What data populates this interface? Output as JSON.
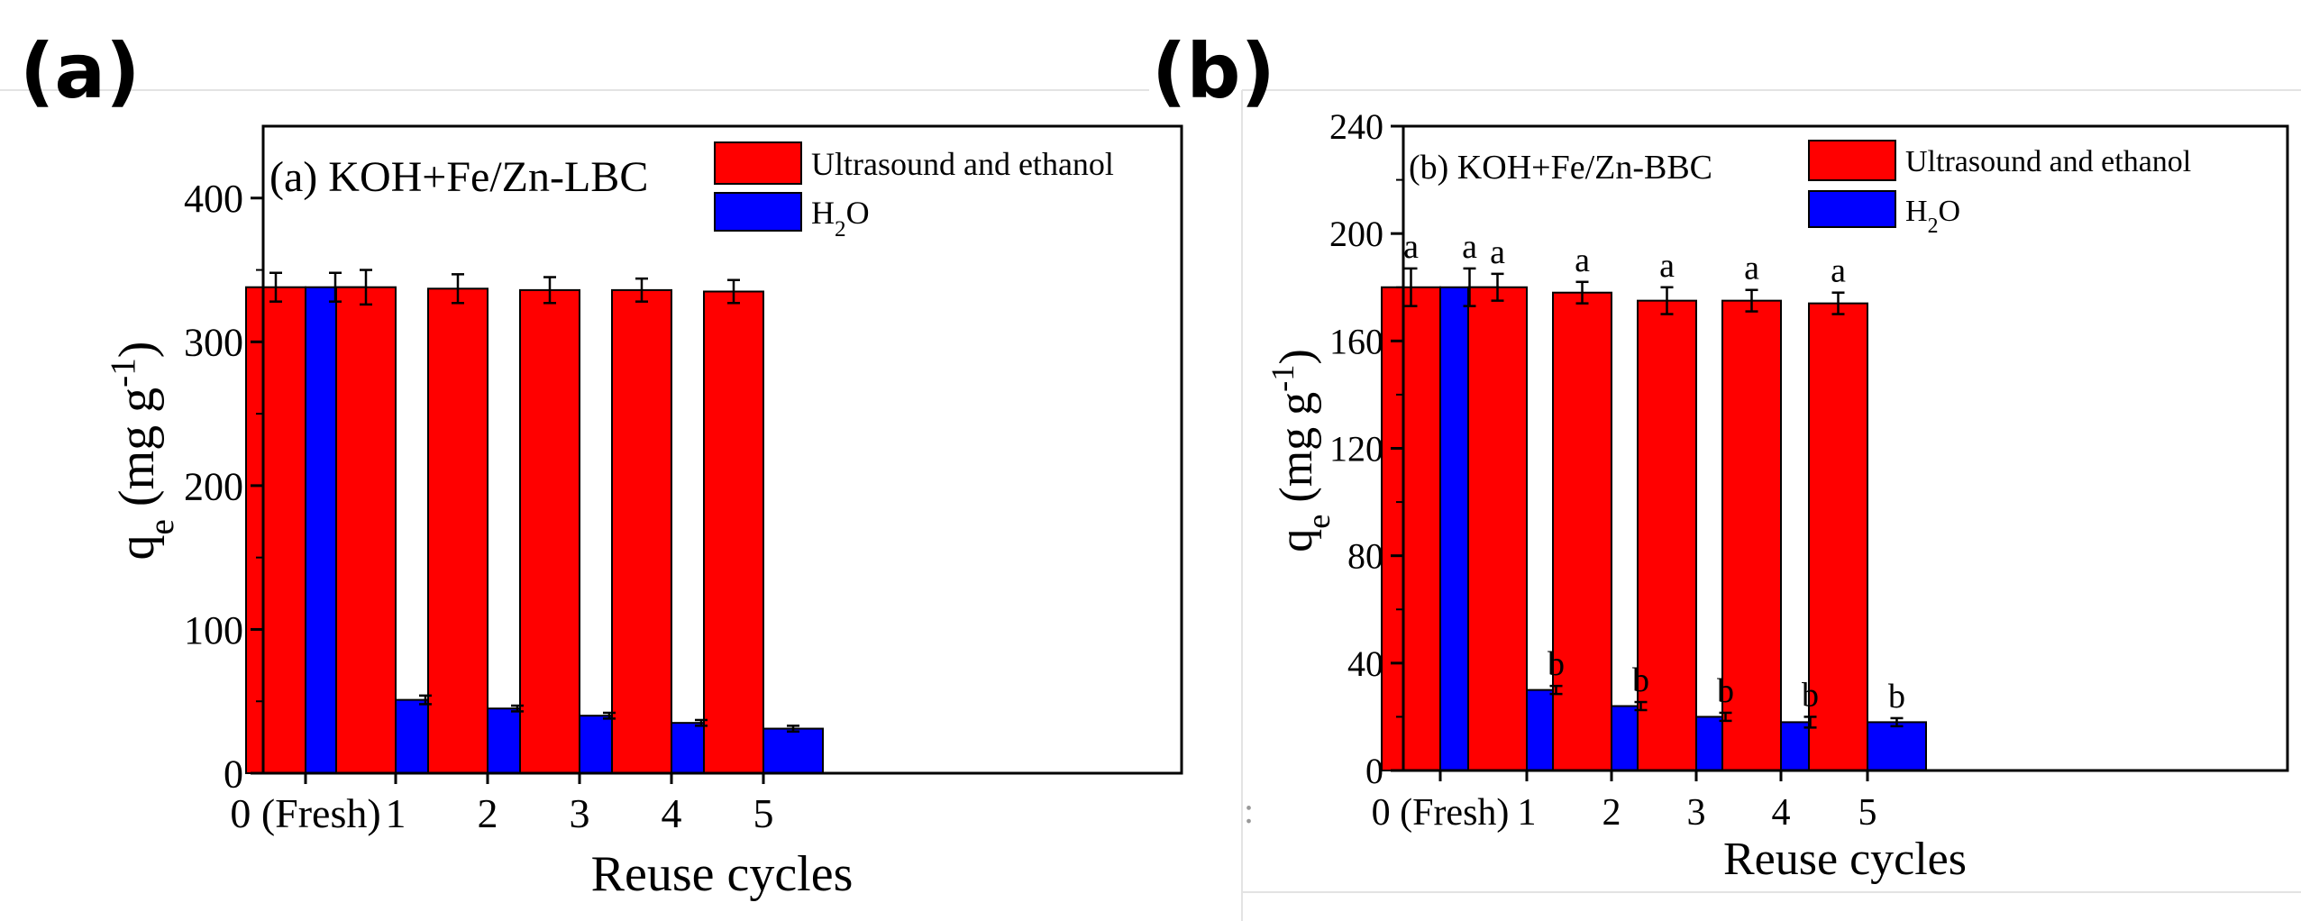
{
  "panels": {
    "a": {
      "label": "(a)"
    },
    "b": {
      "label": "(b)"
    }
  },
  "chart_data": [
    {
      "type": "bar",
      "title": "(a) KOH+Fe/Zn-LBC",
      "xlabel": "Reuse cycles",
      "ylabel": "qe (mg g-1)",
      "ylim": [
        0,
        450
      ],
      "yticks": [
        0,
        100,
        200,
        300,
        400
      ],
      "categories": [
        "0 (Fresh)",
        "1",
        "2",
        "3",
        "4",
        "5"
      ],
      "legend_position": "top-right",
      "colors": {
        "ultrasound": "#ff0000",
        "water": "#0000ff"
      },
      "series": [
        {
          "name": "Ultrasound and ethanol",
          "values": [
            338,
            338,
            337,
            336,
            336,
            335
          ],
          "errors": [
            10,
            12,
            10,
            9,
            8,
            8
          ]
        },
        {
          "name": "H2O",
          "values": [
            338,
            51,
            45,
            40,
            35,
            31
          ],
          "errors": [
            10,
            3,
            2,
            2,
            2,
            2
          ]
        }
      ]
    },
    {
      "type": "bar",
      "title": "(b) KOH+Fe/Zn-BBC",
      "xlabel": "Reuse cycles",
      "ylabel": "qe (mg g-1)",
      "ylim": [
        0,
        240
      ],
      "yticks": [
        0,
        40,
        80,
        120,
        160,
        200,
        240
      ],
      "categories": [
        "0 (Fresh)",
        "1",
        "2",
        "3",
        "4",
        "5"
      ],
      "legend_position": "top-right",
      "colors": {
        "ultrasound": "#ff0000",
        "water": "#0000ff"
      },
      "series": [
        {
          "name": "Ultrasound and ethanol",
          "values": [
            180,
            180,
            178,
            175,
            175,
            174
          ],
          "errors": [
            7,
            5,
            4,
            5,
            4,
            4
          ],
          "letters": [
            "a",
            "a",
            "a",
            "a",
            "a",
            "a"
          ]
        },
        {
          "name": "H2O",
          "values": [
            180,
            30,
            24,
            20,
            18,
            18
          ],
          "errors": [
            7,
            1.5,
            1.5,
            1.5,
            2,
            1.5
          ],
          "letters": [
            "a",
            "b",
            "b",
            "b",
            "b",
            "b"
          ]
        }
      ]
    }
  ]
}
